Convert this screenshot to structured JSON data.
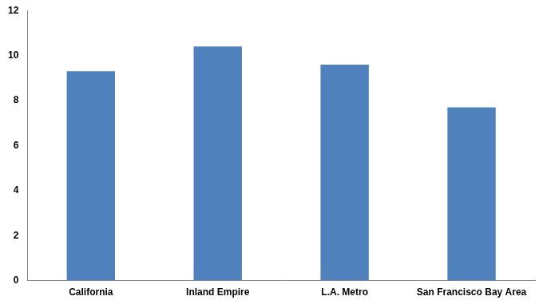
{
  "chart_data": {
    "type": "bar",
    "categories": [
      "California",
      "Inland Empire",
      "L.A. Metro",
      "San Francisco Bay Area"
    ],
    "values": [
      9.3,
      10.4,
      9.6,
      7.7
    ],
    "color": "#4f81bd",
    "ylim": [
      0,
      12
    ],
    "yticks": [
      0,
      2,
      4,
      6,
      8,
      10,
      12
    ],
    "grid": false
  }
}
